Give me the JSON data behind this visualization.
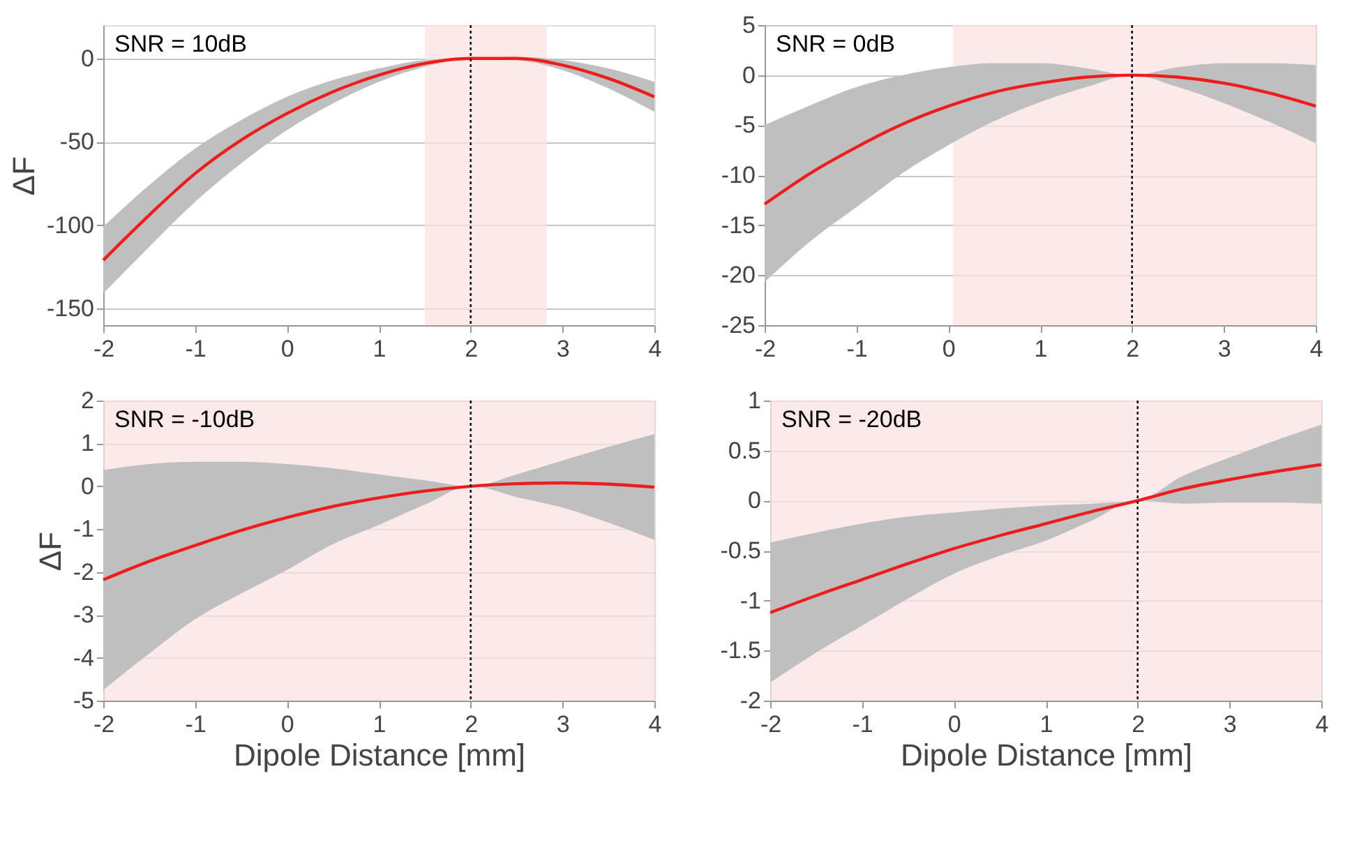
{
  "chart_data": [
    {
      "type": "line",
      "ylabel": "ΔF",
      "annotations": [
        "SNR = 10dB"
      ],
      "x": [
        -2,
        -1.5,
        -1,
        -0.5,
        0,
        0.5,
        1,
        1.5,
        2,
        2.5,
        3,
        3.5,
        4
      ],
      "xlim": [
        -2,
        4
      ],
      "xticks": [
        -2,
        -1,
        0,
        1,
        2,
        3,
        4
      ],
      "ylim": [
        -160,
        20
      ],
      "yticks": [
        -150,
        -100,
        -50,
        0
      ],
      "grid": "y",
      "series": [
        {
          "color": "#ee1c1c",
          "values": [
            -121,
            -94,
            -69,
            -49,
            -33,
            -20,
            -10,
            -3,
            0,
            0,
            -4,
            -12,
            -23
          ],
          "lower": [
            -141,
            -113,
            -86,
            -63,
            -43,
            -27,
            -14,
            -5,
            0,
            -1,
            -7,
            -18,
            -32
          ],
          "upper": [
            -101,
            -76,
            -54,
            -37,
            -23,
            -13,
            -6,
            -1,
            0,
            1,
            -1,
            -6,
            -14
          ]
        }
      ],
      "bands": [
        {
          "axis": "x",
          "from": 1.5,
          "to": 2.83,
          "color": "#fbe3e4"
        }
      ],
      "ref_lines": [
        {
          "axis": "x",
          "value": 2,
          "color": "#000000",
          "line_style": "dotted"
        }
      ]
    },
    {
      "type": "line",
      "annotations": [
        "SNR = 0dB"
      ],
      "x": [
        -2,
        -1.5,
        -1,
        -0.5,
        0,
        0.5,
        1,
        1.5,
        2,
        2.5,
        3,
        3.5,
        4
      ],
      "xlim": [
        -2,
        4
      ],
      "xticks": [
        -2,
        -1,
        0,
        1,
        2,
        3,
        4
      ],
      "ylim": [
        -25,
        5
      ],
      "yticks": [
        -25,
        -20,
        -15,
        -10,
        -5,
        0,
        5
      ],
      "grid": "y",
      "series": [
        {
          "color": "#ee1c1c",
          "values": [
            -12.9,
            -9.8,
            -7.2,
            -4.9,
            -3.1,
            -1.7,
            -0.8,
            -0.2,
            0,
            -0.2,
            -0.8,
            -1.8,
            -3.1
          ],
          "lower": [
            -20.7,
            -16.6,
            -13.2,
            -9.8,
            -7,
            -4.6,
            -2.7,
            -1.2,
            0,
            -1.2,
            -2.8,
            -4.7,
            -6.8
          ],
          "upper": [
            -5,
            -3,
            -1.2,
            0,
            0.8,
            1.2,
            1.2,
            0.7,
            0,
            0.8,
            1.2,
            1.2,
            1
          ]
        }
      ],
      "bands": [
        {
          "axis": "x",
          "from": 0.05,
          "to": 4,
          "color": "#fbe3e4"
        }
      ],
      "ref_lines": [
        {
          "axis": "x",
          "value": 2,
          "color": "#000000",
          "line_style": "dotted"
        }
      ]
    },
    {
      "type": "line",
      "ylabel": "ΔF",
      "xlabel": "Dipole Distance [mm]",
      "annotations": [
        "SNR = -10dB"
      ],
      "x": [
        -2,
        -1.5,
        -1,
        -0.5,
        0,
        0.5,
        1,
        1.5,
        2,
        2.5,
        3,
        3.5,
        4
      ],
      "xlim": [
        -2,
        4
      ],
      "xticks": [
        -2,
        -1,
        0,
        1,
        2,
        3,
        4
      ],
      "ylim": [
        -5,
        2
      ],
      "yticks": [
        -5,
        -4,
        -3,
        -2,
        -1,
        0,
        1,
        2
      ],
      "grid": "y",
      "series": [
        {
          "color": "#ee1c1c",
          "values": [
            -2.18,
            -1.75,
            -1.38,
            -1.03,
            -0.73,
            -0.47,
            -0.27,
            -0.11,
            0,
            0.06,
            0.08,
            0.05,
            -0.02
          ],
          "lower": [
            -4.75,
            -3.9,
            -3.1,
            -2.5,
            -1.95,
            -1.35,
            -0.9,
            -0.43,
            0,
            -0.25,
            -0.5,
            -0.85,
            -1.25
          ],
          "upper": [
            0.38,
            0.52,
            0.57,
            0.57,
            0.52,
            0.42,
            0.28,
            0.14,
            0,
            0.28,
            0.6,
            0.92,
            1.22
          ]
        }
      ],
      "bands": [
        {
          "axis": "x",
          "from": -2,
          "to": 4,
          "color": "#fbe3e4"
        }
      ],
      "ref_lines": [
        {
          "axis": "x",
          "value": 2,
          "color": "#000000",
          "line_style": "dotted"
        }
      ]
    },
    {
      "type": "line",
      "xlabel": "Dipole Distance [mm]",
      "annotations": [
        "SNR = -20dB"
      ],
      "x": [
        -2,
        -1.5,
        -1,
        -0.5,
        0,
        0.5,
        1,
        1.5,
        2,
        2.5,
        3,
        3.5,
        4
      ],
      "xlim": [
        -2,
        4
      ],
      "xticks": [
        -2,
        -1,
        0,
        1,
        2,
        3,
        4
      ],
      "ylim": [
        -2,
        1
      ],
      "yticks": [
        -2,
        -1.5,
        -1,
        -0.5,
        0,
        0.5,
        1
      ],
      "grid": "y",
      "series": [
        {
          "color": "#ee1c1c",
          "values": [
            -1.12,
            -0.95,
            -0.79,
            -0.63,
            -0.48,
            -0.35,
            -0.23,
            -0.11,
            0,
            0.12,
            0.21,
            0.29,
            0.36
          ],
          "lower": [
            -1.82,
            -1.52,
            -1.25,
            -0.98,
            -0.73,
            -0.55,
            -0.4,
            -0.2,
            0,
            -0.03,
            -0.02,
            -0.02,
            -0.03
          ],
          "upper": [
            -0.42,
            -0.32,
            -0.23,
            -0.16,
            -0.12,
            -0.08,
            -0.05,
            -0.03,
            0,
            0.25,
            0.43,
            0.6,
            0.76
          ]
        }
      ],
      "bands": [
        {
          "axis": "x",
          "from": -2,
          "to": 4,
          "color": "#fbe3e4"
        }
      ],
      "ref_lines": [
        {
          "axis": "x",
          "value": 2,
          "color": "#000000",
          "line_style": "dotted"
        }
      ]
    }
  ]
}
